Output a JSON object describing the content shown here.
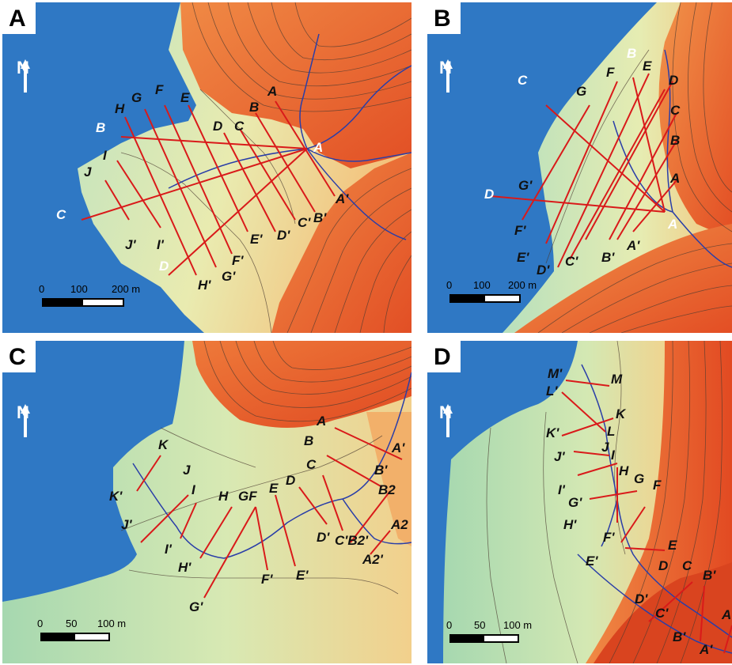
{
  "panels": {
    "a": {
      "letter": "A",
      "north": "N",
      "scale": [
        "0",
        "100",
        "200 m"
      ],
      "labels": [
        "A",
        "B",
        "C",
        "D",
        "E",
        "F",
        "G",
        "H",
        "I",
        "J",
        "A",
        "B",
        "C",
        "D",
        "A'",
        "B'",
        "C'",
        "D'",
        "E'",
        "F'",
        "G'",
        "H'",
        "I'",
        "J'"
      ]
    },
    "b": {
      "letter": "B",
      "north": "N",
      "scale": [
        "0",
        "100",
        "200 m"
      ],
      "labels": [
        "B",
        "C",
        "G",
        "F",
        "E",
        "D",
        "C",
        "B",
        "A",
        "G'",
        "D",
        "F'",
        "E'",
        "D'",
        "C'",
        "B'",
        "A'",
        "A"
      ]
    },
    "c": {
      "letter": "C",
      "north": "N",
      "scale": [
        "0",
        "50",
        "100 m"
      ],
      "labels": [
        "A",
        "B",
        "A'",
        "C",
        "B'",
        "D",
        "E",
        "GF",
        "H",
        "I",
        "J",
        "K",
        "B2",
        "A2",
        "K'",
        "J'",
        "I'",
        "H'",
        "G'",
        "F'",
        "E'",
        "D'",
        "C'B2'",
        "A2'"
      ]
    },
    "d": {
      "letter": "D",
      "north": "N",
      "scale": [
        "0",
        "50",
        "100 m"
      ],
      "labels": [
        "M'",
        "M",
        "L'",
        "K",
        "L",
        "K'",
        "J'",
        "J",
        "I",
        "H",
        "G",
        "F",
        "I'",
        "G'",
        "H'",
        "F'",
        "E",
        "E'",
        "D",
        "C",
        "B'",
        "D'",
        "C'",
        "A",
        "B'",
        "A'"
      ]
    }
  },
  "colors": {
    "sea": "#2f78c4",
    "lowland": "#a9dbb1",
    "slope": "#f3d98b",
    "highland": "#e9552a",
    "transect": "#d91a1a",
    "stream": "#2a3ea8",
    "contour": "#4a3a30"
  },
  "icons": [
    "north-arrow-icon",
    "scale-bar-icon"
  ]
}
